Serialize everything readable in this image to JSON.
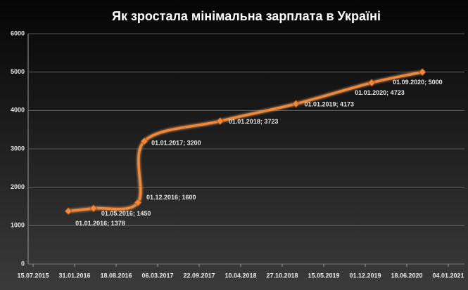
{
  "chart_data": {
    "type": "line",
    "title": "Як зростала мінімальна зарплата в Україні",
    "x": [
      "2016-01-01",
      "2016-05-01",
      "2016-12-01",
      "2017-01-01",
      "2018-01-01",
      "2019-01-01",
      "2020-01-01",
      "2020-09-01"
    ],
    "series": [
      {
        "name": "Мінімальна зарплата",
        "color": "#f0883a",
        "values": [
          1378,
          1450,
          1600,
          3200,
          3723,
          4173,
          4723,
          5000
        ],
        "value_labels": [
          "01.01.2016; 1378",
          "01.05.2016; 1450",
          "01.12.2016; 1600",
          "01.01.2017; 3200",
          "01.01.2018; 3723",
          "01.01.2019; 4173",
          "01.01.2020; 4723",
          "01.09.2020; 5000"
        ]
      }
    ],
    "xlim": [
      "2015-07-15",
      "2021-01-04"
    ],
    "xticks": [
      {
        "value": "2015-07-15",
        "label": "15.07.2015"
      },
      {
        "value": "2016-01-31",
        "label": "31.01.2016"
      },
      {
        "value": "2016-08-18",
        "label": "18.08.2016"
      },
      {
        "value": "2017-03-06",
        "label": "06.03.2017"
      },
      {
        "value": "2017-09-22",
        "label": "22.09.2017"
      },
      {
        "value": "2018-04-10",
        "label": "10.04.2018"
      },
      {
        "value": "2018-10-27",
        "label": "27.10.2018"
      },
      {
        "value": "2019-05-15",
        "label": "15.05.2019"
      },
      {
        "value": "2019-12-01",
        "label": "01.12.2019"
      },
      {
        "value": "2020-06-18",
        "label": "18.06.2020"
      },
      {
        "value": "2021-01-04",
        "label": "04.01.2021"
      }
    ],
    "ylim": [
      0,
      6000
    ],
    "yticks": [
      0,
      1000,
      2000,
      3000,
      4000,
      5000,
      6000
    ],
    "grid": true
  }
}
